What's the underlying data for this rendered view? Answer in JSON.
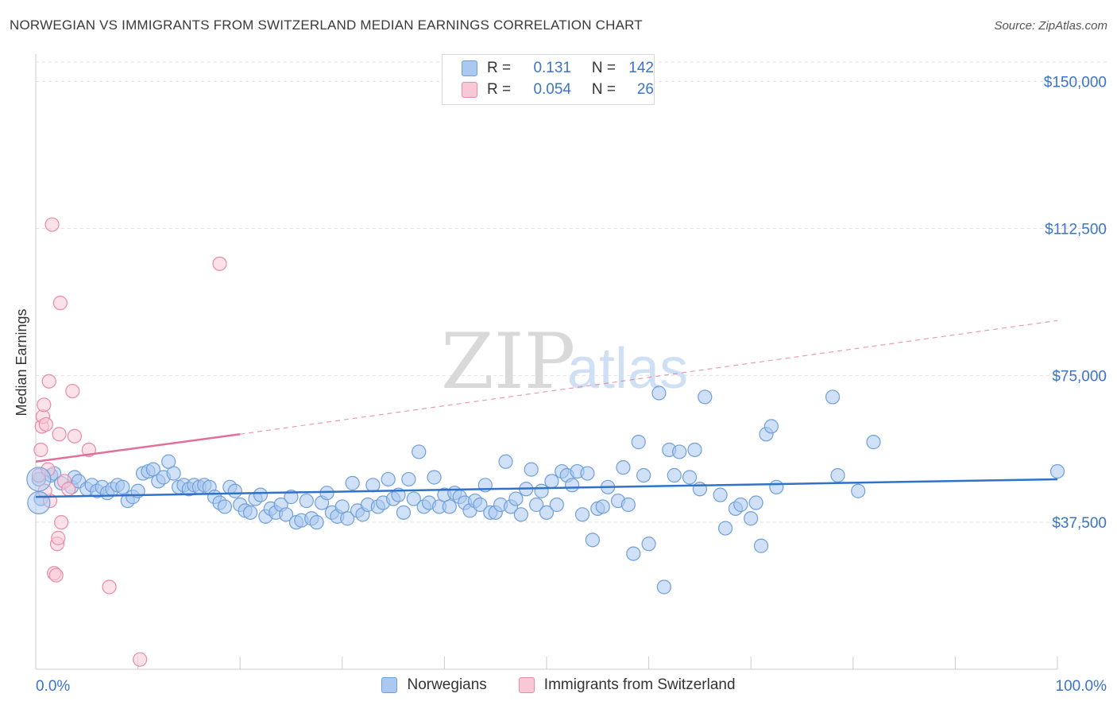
{
  "header": {
    "title": "NORWEGIAN VS IMMIGRANTS FROM SWITZERLAND MEDIAN EARNINGS CORRELATION CHART",
    "source": "Source: ZipAtlas.com"
  },
  "watermark": {
    "zip": "ZIP",
    "atlas": "atlas"
  },
  "legend": {
    "rows": [
      {
        "r_label": "R =",
        "r_value": "0.131",
        "n_label": "N =",
        "n_value": "142",
        "color": "#aac8f0",
        "border": "#6f9fd8"
      },
      {
        "r_label": "R =",
        "r_value": "0.054",
        "n_label": "N =",
        "n_value": "26",
        "color": "#f8c8d6",
        "border": "#e98aa8"
      }
    ]
  },
  "bottom_legend": {
    "items": [
      {
        "label": "Norwegians",
        "color": "#aac8f0",
        "border": "#6f9fd8"
      },
      {
        "label": "Immigrants from Switzerland",
        "color": "#f8c8d6",
        "border": "#e98aa8"
      }
    ]
  },
  "chart_data": {
    "type": "scatter",
    "title": "NORWEGIAN VS IMMIGRANTS FROM SWITZERLAND MEDIAN EARNINGS CORRELATION CHART",
    "ylabel": "Median Earnings",
    "xlabel": "",
    "xlim": [
      0,
      100
    ],
    "ylim": [
      0,
      155000
    ],
    "x_tick_labels": [
      "0.0%",
      "100.0%"
    ],
    "y_ticks": [
      37500,
      75000,
      112500,
      150000
    ],
    "y_tick_labels": [
      "$37,500",
      "$75,000",
      "$112,500",
      "$150,000"
    ],
    "grid": true,
    "legend_position": "top-center",
    "series": [
      {
        "name": "Norwegians",
        "color": "#6f9fd8",
        "fill": "#aac8f0",
        "trend": {
          "x": [
            0,
            100
          ],
          "y": [
            44000,
            48500
          ],
          "color": "#2f73c8"
        },
        "points": [
          [
            0.3,
            48500
          ],
          [
            0.5,
            43500
          ],
          [
            1.5,
            49500
          ],
          [
            1.8,
            50000
          ],
          [
            2.5,
            47500
          ],
          [
            3.5,
            46500
          ],
          [
            3.8,
            49000
          ],
          [
            4.2,
            48000
          ],
          [
            5.0,
            46000
          ],
          [
            5.5,
            47000
          ],
          [
            6.0,
            45500
          ],
          [
            6.5,
            46500
          ],
          [
            7.0,
            45000
          ],
          [
            7.5,
            46000
          ],
          [
            8.0,
            47000
          ],
          [
            8.5,
            46500
          ],
          [
            9.0,
            43000
          ],
          [
            9.5,
            44000
          ],
          [
            10.0,
            45500
          ],
          [
            10.5,
            50000
          ],
          [
            11.0,
            50500
          ],
          [
            11.5,
            51000
          ],
          [
            12.0,
            48000
          ],
          [
            12.5,
            49000
          ],
          [
            13.0,
            53000
          ],
          [
            13.5,
            50000
          ],
          [
            14.0,
            46500
          ],
          [
            14.5,
            47000
          ],
          [
            15.0,
            46000
          ],
          [
            15.5,
            47000
          ],
          [
            16.0,
            46500
          ],
          [
            16.5,
            47000
          ],
          [
            17.0,
            46500
          ],
          [
            17.5,
            44000
          ],
          [
            18.0,
            42500
          ],
          [
            18.5,
            41500
          ],
          [
            19.0,
            46500
          ],
          [
            19.5,
            45500
          ],
          [
            20.0,
            42000
          ],
          [
            20.5,
            40500
          ],
          [
            21.0,
            40000
          ],
          [
            21.5,
            43500
          ],
          [
            22.0,
            44500
          ],
          [
            22.5,
            39000
          ],
          [
            23.0,
            41000
          ],
          [
            23.5,
            40000
          ],
          [
            24.0,
            42000
          ],
          [
            24.5,
            39500
          ],
          [
            25.0,
            44000
          ],
          [
            25.5,
            37500
          ],
          [
            26.0,
            38000
          ],
          [
            26.5,
            43000
          ],
          [
            27.0,
            38500
          ],
          [
            27.5,
            37500
          ],
          [
            28.0,
            42500
          ],
          [
            28.5,
            45000
          ],
          [
            29.0,
            40000
          ],
          [
            29.5,
            39000
          ],
          [
            30.0,
            41500
          ],
          [
            30.5,
            38500
          ],
          [
            31.0,
            47500
          ],
          [
            31.5,
            40500
          ],
          [
            32.0,
            39500
          ],
          [
            32.5,
            42000
          ],
          [
            33.0,
            47000
          ],
          [
            33.5,
            41500
          ],
          [
            34.0,
            42500
          ],
          [
            34.5,
            48500
          ],
          [
            35.0,
            43500
          ],
          [
            35.5,
            44500
          ],
          [
            36.0,
            40000
          ],
          [
            36.5,
            48500
          ],
          [
            37.0,
            43500
          ],
          [
            37.5,
            55500
          ],
          [
            38.0,
            41500
          ],
          [
            38.5,
            42500
          ],
          [
            39.0,
            49000
          ],
          [
            39.5,
            41500
          ],
          [
            40.0,
            44500
          ],
          [
            40.5,
            41500
          ],
          [
            41.0,
            45000
          ],
          [
            41.5,
            44000
          ],
          [
            42.0,
            42500
          ],
          [
            42.5,
            40500
          ],
          [
            43.0,
            43000
          ],
          [
            43.5,
            42000
          ],
          [
            44.0,
            47000
          ],
          [
            44.5,
            40000
          ],
          [
            45.0,
            40000
          ],
          [
            45.5,
            42000
          ],
          [
            46.0,
            53000
          ],
          [
            46.5,
            41500
          ],
          [
            47.0,
            43500
          ],
          [
            47.5,
            39500
          ],
          [
            48.0,
            46000
          ],
          [
            48.5,
            51000
          ],
          [
            49.0,
            42000
          ],
          [
            49.5,
            45500
          ],
          [
            50.0,
            40000
          ],
          [
            50.5,
            48000
          ],
          [
            51.0,
            42000
          ],
          [
            51.5,
            50500
          ],
          [
            52.0,
            49500
          ],
          [
            52.5,
            47000
          ],
          [
            53.0,
            50500
          ],
          [
            53.5,
            39500
          ],
          [
            54.0,
            50000
          ],
          [
            54.5,
            33000
          ],
          [
            55.0,
            41000
          ],
          [
            55.5,
            41500
          ],
          [
            56.0,
            46500
          ],
          [
            57.0,
            43000
          ],
          [
            57.5,
            51500
          ],
          [
            58.0,
            42000
          ],
          [
            58.5,
            29500
          ],
          [
            59.0,
            58000
          ],
          [
            59.5,
            49500
          ],
          [
            60.0,
            32000
          ],
          [
            61.0,
            70500
          ],
          [
            61.5,
            21000
          ],
          [
            62.0,
            56000
          ],
          [
            62.5,
            49500
          ],
          [
            63.0,
            55500
          ],
          [
            64.0,
            49000
          ],
          [
            64.5,
            56000
          ],
          [
            65.0,
            46000
          ],
          [
            65.5,
            69500
          ],
          [
            67.0,
            44500
          ],
          [
            67.5,
            36000
          ],
          [
            68.5,
            41000
          ],
          [
            69.0,
            42000
          ],
          [
            70.0,
            38500
          ],
          [
            70.5,
            42500
          ],
          [
            71.0,
            31500
          ],
          [
            71.5,
            60000
          ],
          [
            72.0,
            62000
          ],
          [
            72.5,
            46500
          ],
          [
            78.0,
            69500
          ],
          [
            78.5,
            49500
          ],
          [
            80.5,
            45500
          ],
          [
            82.0,
            58000
          ],
          [
            100.0,
            50500
          ]
        ]
      },
      {
        "name": "Immigrants from Switzerland",
        "color": "#e98aa8",
        "fill": "#f8c8d6",
        "trend": {
          "x": [
            0,
            20
          ],
          "y": [
            53000,
            60000
          ],
          "x_dashed": [
            20,
            100
          ],
          "y_dashed": [
            60000,
            89000
          ],
          "color": "#e0709a"
        },
        "points": [
          [
            0.3,
            49500
          ],
          [
            0.5,
            56000
          ],
          [
            0.6,
            62000
          ],
          [
            0.7,
            64500
          ],
          [
            0.8,
            67500
          ],
          [
            1.0,
            62500
          ],
          [
            1.2,
            51000
          ],
          [
            1.3,
            73500
          ],
          [
            1.4,
            43000
          ],
          [
            1.6,
            113500
          ],
          [
            1.8,
            24500
          ],
          [
            2.0,
            24000
          ],
          [
            2.1,
            32000
          ],
          [
            2.2,
            33500
          ],
          [
            2.3,
            60000
          ],
          [
            2.4,
            93500
          ],
          [
            2.5,
            37500
          ],
          [
            2.8,
            48000
          ],
          [
            3.2,
            46000
          ],
          [
            3.6,
            71000
          ],
          [
            3.8,
            59500
          ],
          [
            5.2,
            56000
          ],
          [
            7.2,
            21000
          ],
          [
            10.2,
            2500
          ],
          [
            18.0,
            103500
          ],
          [
            0.9,
            45500
          ]
        ]
      }
    ]
  }
}
